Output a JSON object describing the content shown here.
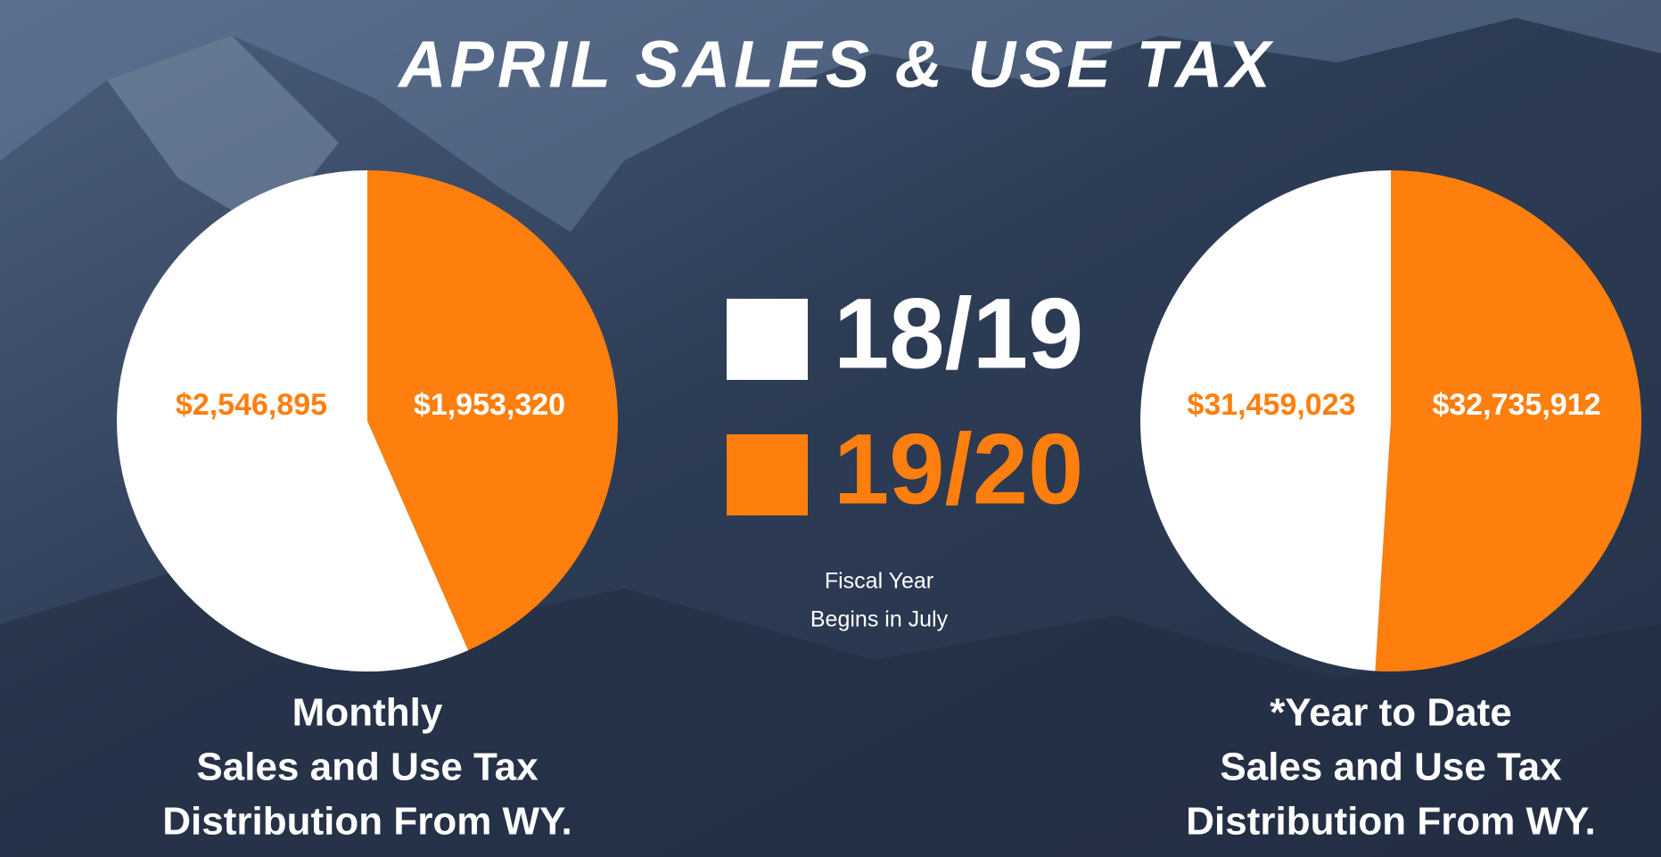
{
  "title": "APRIL SALES & USE TAX",
  "legend": [
    {
      "name": "18/19",
      "color": "#ffffff"
    },
    {
      "name": "19/20",
      "color": "#ff7f0e"
    }
  ],
  "note": [
    "Fiscal Year",
    "Begins in July"
  ],
  "chart_data": [
    {
      "type": "pie",
      "categories": [
        "18/19",
        "19/20"
      ],
      "values": [
        2546895,
        1953320
      ],
      "value_labels": [
        "$2,546,895",
        "$1,953,320"
      ],
      "colors": [
        "#ffffff",
        "#ff7f0e"
      ],
      "caption": [
        "Monthly",
        "Sales and Use Tax",
        "Distribution From WY."
      ]
    },
    {
      "type": "pie",
      "categories": [
        "18/19",
        "19/20"
      ],
      "values": [
        31459023,
        32735912
      ],
      "value_labels": [
        "$31,459,023",
        "$32,735,912"
      ],
      "colors": [
        "#ffffff",
        "#ff7f0e"
      ],
      "caption": [
        "*Year to Date",
        "Sales and Use Tax",
        "Distribution From WY."
      ]
    }
  ]
}
